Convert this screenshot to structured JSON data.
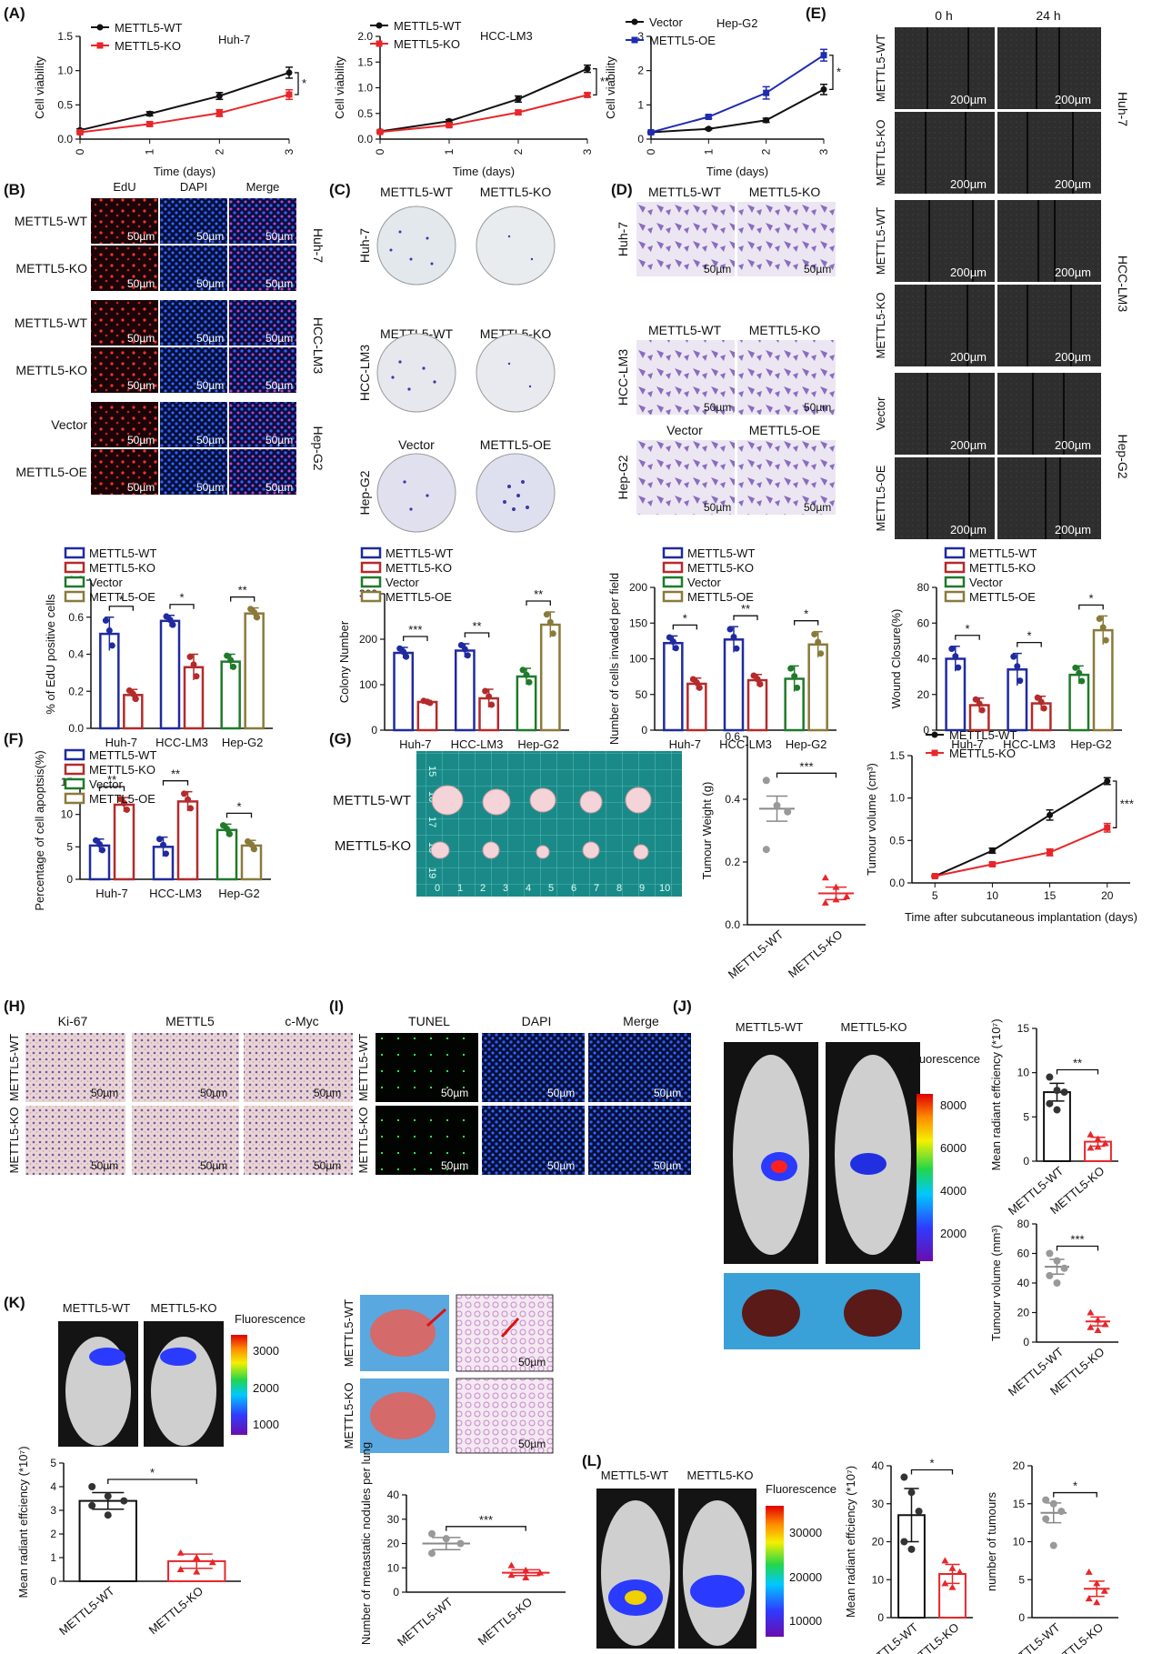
{
  "figure": {
    "panel_labels": [
      "(A)",
      "(B)",
      "(C)",
      "(D)",
      "(E)",
      "(F)",
      "(G)",
      "(H)",
      "(I)",
      "(J)",
      "(K)",
      "(L)"
    ],
    "colors": {
      "wt": "#111111",
      "ko": "#e8262a",
      "oe": "#1f2bb0",
      "vec": "#111111",
      "bar_wt": "#1f2aa0",
      "bar_ko": "#b52a2a",
      "bar_vec": "#1f7a2a",
      "bar_oe": "#8a7a3a",
      "tissue": "#f2dde0",
      "microscopy": "#101838"
    }
  },
  "scale_200": "200µm",
  "scale_50": "50µm",
  "B": {
    "cols": [
      "EdU",
      "DAPI",
      "Merge"
    ],
    "rows": [
      "METTL5-WT",
      "METTL5-KO",
      "METTL5-WT",
      "METTL5-KO",
      "Vector",
      "METTL5-OE"
    ],
    "groups": [
      "Huh-7",
      "HCC-LM3",
      "Hep-G2"
    ]
  },
  "C": {
    "heads": [
      [
        "METTL5-WT",
        "METTL5-KO"
      ],
      [
        "METTL5-WT",
        "METTL5-KO"
      ],
      [
        "Vector",
        "METTL5-OE"
      ]
    ],
    "rows": [
      "Huh-7",
      "HCC-LM3",
      "Hep-G2"
    ]
  },
  "D": {
    "heads": [
      [
        "METTL5-WT",
        "METTL5-KO"
      ],
      [
        "METTL5-WT",
        "METTL5-KO"
      ],
      [
        "Vector",
        "METTL5-OE"
      ]
    ],
    "rows": [
      "Huh-7",
      "HCC-LM3",
      "Hep-G2"
    ]
  },
  "E": {
    "cols": [
      "0 h",
      "24 h"
    ],
    "rows": [
      "METTL5-WT",
      "METTL5-KO",
      "METTL5-WT",
      "METTL5-KO",
      "Vector",
      "METTL5-OE"
    ],
    "groups": [
      "Huh-7",
      "HCC-LM3",
      "Hep-G2"
    ]
  },
  "G": {
    "rows": [
      "METTL5-WT",
      "METTL5-KO"
    ],
    "ruler": [
      "15",
      "16",
      "17",
      "18",
      "19",
      "0",
      "1",
      "2",
      "3",
      "4",
      "5",
      "6",
      "7",
      "8",
      "9",
      "10"
    ]
  },
  "H": {
    "cols": [
      "Ki-67",
      "METTL5",
      "c-Myc"
    ],
    "rows": [
      "METTL5-WT",
      "METTL5-KO"
    ]
  },
  "I": {
    "cols": [
      "TUNEL",
      "DAPI",
      "Merge"
    ],
    "rows": [
      "METTL5-WT",
      "METTL5-KO"
    ]
  },
  "J": {
    "mice": [
      "METTL5-WT",
      "METTL5-KO"
    ],
    "scale_title": "Fluorescence",
    "scale_ticks": [
      "8000",
      "6000",
      "4000",
      "2000"
    ]
  },
  "K": {
    "mice": [
      "METTL5-WT",
      "METTL5-KO"
    ],
    "scale_title": "Fluorescence",
    "scale_ticks": [
      "3000",
      "2000",
      "1000"
    ],
    "lung_rows": [
      "METTL5-WT",
      "METTL5-KO"
    ]
  },
  "L": {
    "mice": [
      "METTL5-WT",
      "METTL5-KO"
    ],
    "scale_title": "Fluorescence",
    "scale_ticks": [
      "30000",
      "20000",
      "10000"
    ]
  },
  "chart_data": [
    {
      "id": "A1",
      "type": "line",
      "title": "Huh-7",
      "xlabel": "Time (days)",
      "ylabel": "Cell viability",
      "x": [
        0,
        1,
        2,
        3
      ],
      "xlim": [
        0,
        3
      ],
      "ylim": [
        0,
        1.5
      ],
      "yticks": [
        0.0,
        0.5,
        1.0,
        1.5
      ],
      "series": [
        {
          "name": "METTL5-WT",
          "values": [
            0.13,
            0.37,
            0.63,
            0.97
          ],
          "err": [
            0.02,
            0.03,
            0.05,
            0.08
          ]
        },
        {
          "name": "METTL5-KO",
          "values": [
            0.1,
            0.22,
            0.38,
            0.65
          ],
          "err": [
            0.02,
            0.03,
            0.05,
            0.07
          ]
        }
      ],
      "sig": "*"
    },
    {
      "id": "A2",
      "type": "line",
      "title": "HCC-LM3",
      "xlabel": "Time (days)",
      "ylabel": "Cell viability",
      "x": [
        0,
        1,
        2,
        3
      ],
      "xlim": [
        0,
        3
      ],
      "ylim": [
        0,
        2.0
      ],
      "yticks": [
        0.0,
        0.5,
        1.0,
        1.5,
        2.0
      ],
      "series": [
        {
          "name": "METTL5-WT",
          "values": [
            0.15,
            0.35,
            0.78,
            1.37
          ],
          "err": [
            0.02,
            0.03,
            0.06,
            0.07
          ]
        },
        {
          "name": "METTL5-KO",
          "values": [
            0.14,
            0.27,
            0.52,
            0.86
          ],
          "err": [
            0.02,
            0.03,
            0.04,
            0.04
          ]
        }
      ],
      "sig": "**"
    },
    {
      "id": "A3",
      "type": "line",
      "title": "Hep-G2",
      "xlabel": "Time (days)",
      "ylabel": "Cell viability",
      "x": [
        0,
        1,
        2,
        3
      ],
      "xlim": [
        0,
        3
      ],
      "ylim": [
        0,
        3
      ],
      "yticks": [
        0,
        1,
        2,
        3
      ],
      "series": [
        {
          "name": "Vector",
          "values": [
            0.2,
            0.3,
            0.55,
            1.45
          ],
          "err": [
            0.02,
            0.03,
            0.06,
            0.15
          ]
        },
        {
          "name": "METTL5-OE",
          "values": [
            0.2,
            0.65,
            1.35,
            2.45
          ],
          "err": [
            0.03,
            0.05,
            0.18,
            0.17
          ]
        }
      ],
      "sig": "*"
    },
    {
      "id": "B",
      "type": "bar",
      "ylabel": "% of EdU positive cells",
      "categories": [
        "Huh-7",
        "HCC-LM3",
        "Hep-G2"
      ],
      "ylim": [
        0,
        0.8
      ],
      "yticks": [
        0.0,
        0.2,
        0.4,
        0.6,
        0.8
      ],
      "legend": [
        "METTL5-WT",
        "METTL5-KO",
        "Vector",
        "METTL5-OE"
      ],
      "bars": [
        {
          "g": 0,
          "s": "METTL5-WT",
          "v": 0.51,
          "e": 0.09
        },
        {
          "g": 0,
          "s": "METTL5-KO",
          "v": 0.18,
          "e": 0.03
        },
        {
          "g": 1,
          "s": "METTL5-WT",
          "v": 0.58,
          "e": 0.03
        },
        {
          "g": 1,
          "s": "METTL5-KO",
          "v": 0.33,
          "e": 0.07
        },
        {
          "g": 2,
          "s": "Vector",
          "v": 0.36,
          "e": 0.04
        },
        {
          "g": 2,
          "s": "METTL5-OE",
          "v": 0.62,
          "e": 0.03
        }
      ],
      "sig": [
        [
          "*",
          "*",
          "**"
        ]
      ]
    },
    {
      "id": "C",
      "type": "bar",
      "ylabel": "Colony Number",
      "categories": [
        "Huh-7",
        "HCC-LM3",
        "Hep-G2"
      ],
      "ylim": [
        0,
        300
      ],
      "yticks": [
        0,
        100,
        200,
        300
      ],
      "legend": [
        "METTL5-WT",
        "METTL5-KO",
        "Vector",
        "METTL5-OE"
      ],
      "bars": [
        {
          "g": 0,
          "s": "METTL5-WT",
          "v": 170,
          "e": 12
        },
        {
          "g": 0,
          "s": "METTL5-KO",
          "v": 62,
          "e": 3
        },
        {
          "g": 1,
          "s": "METTL5-WT",
          "v": 175,
          "e": 15
        },
        {
          "g": 1,
          "s": "METTL5-KO",
          "v": 70,
          "e": 20
        },
        {
          "g": 2,
          "s": "Vector",
          "v": 118,
          "e": 18
        },
        {
          "g": 2,
          "s": "METTL5-OE",
          "v": 232,
          "e": 28
        }
      ],
      "sig": [
        [
          "***",
          "**",
          "**"
        ]
      ]
    },
    {
      "id": "D",
      "type": "bar",
      "ylabel": "Number of cells invaded per field",
      "categories": [
        "Huh-7",
        "HCC-LM3",
        "Hep-G2"
      ],
      "ylim": [
        0,
        200
      ],
      "yticks": [
        0,
        50,
        100,
        150,
        200
      ],
      "legend": [
        "METTL5-WT",
        "METTL5-KO",
        "Vector",
        "METTL5-OE"
      ],
      "bars": [
        {
          "g": 0,
          "s": "METTL5-WT",
          "v": 122,
          "e": 10
        },
        {
          "g": 0,
          "s": "METTL5-KO",
          "v": 65,
          "e": 8
        },
        {
          "g": 1,
          "s": "METTL5-WT",
          "v": 127,
          "e": 18
        },
        {
          "g": 1,
          "s": "METTL5-KO",
          "v": 70,
          "e": 8
        },
        {
          "g": 2,
          "s": "Vector",
          "v": 72,
          "e": 18
        },
        {
          "g": 2,
          "s": "METTL5-OE",
          "v": 120,
          "e": 18
        }
      ],
      "sig": [
        [
          "*",
          "**",
          "*"
        ]
      ]
    },
    {
      "id": "E",
      "type": "bar",
      "ylabel": "Wound Closure(%)",
      "categories": [
        "Huh-7",
        "HCC-LM3",
        "Hep-G2"
      ],
      "ylim": [
        0,
        80
      ],
      "yticks": [
        0,
        20,
        40,
        60,
        80
      ],
      "legend": [
        "METTL5-WT",
        "METTL5-KO",
        "Vector",
        "METTL5-OE"
      ],
      "bars": [
        {
          "g": 0,
          "s": "METTL5-WT",
          "v": 40,
          "e": 7
        },
        {
          "g": 0,
          "s": "METTL5-KO",
          "v": 14,
          "e": 4
        },
        {
          "g": 1,
          "s": "METTL5-WT",
          "v": 34,
          "e": 9
        },
        {
          "g": 1,
          "s": "METTL5-KO",
          "v": 15,
          "e": 4
        },
        {
          "g": 2,
          "s": "Vector",
          "v": 31,
          "e": 5
        },
        {
          "g": 2,
          "s": "METTL5-OE",
          "v": 56,
          "e": 8
        }
      ],
      "sig": [
        [
          "*",
          "*",
          "*"
        ]
      ]
    },
    {
      "id": "F",
      "type": "bar",
      "ylabel": "Percentage of cell apoptsis(%)",
      "categories": [
        "Huh-7",
        "HCC-LM3",
        "Hep-G2"
      ],
      "ylim": [
        0,
        15
      ],
      "yticks": [
        0,
        5,
        10,
        15
      ],
      "legend": [
        "METTL5-WT",
        "METTL5-KO",
        "Vector",
        "METTL5-OE"
      ],
      "bars": [
        {
          "g": 0,
          "s": "METTL5-WT",
          "v": 5.2,
          "e": 1.0
        },
        {
          "g": 0,
          "s": "METTL5-KO",
          "v": 11.5,
          "e": 1.1
        },
        {
          "g": 1,
          "s": "METTL5-WT",
          "v": 5.0,
          "e": 1.5
        },
        {
          "g": 1,
          "s": "METTL5-KO",
          "v": 12.0,
          "e": 1.5
        },
        {
          "g": 2,
          "s": "Vector",
          "v": 7.6,
          "e": 0.9
        },
        {
          "g": 2,
          "s": "METTL5-OE",
          "v": 5.2,
          "e": 0.8
        }
      ],
      "sig": [
        [
          "**",
          "**",
          "*"
        ]
      ]
    },
    {
      "id": "G1",
      "type": "scatter",
      "ylabel": "Tumour Weight (g)",
      "categories": [
        "METTL5-WT",
        "METTL5-KO"
      ],
      "ylim": [
        0,
        0.6
      ],
      "yticks": [
        0.0,
        0.2,
        0.4,
        0.6
      ],
      "groups": [
        {
          "mean": 0.37,
          "sem": 0.04,
          "pts": [
            0.46,
            0.38,
            0.36,
            0.24
          ]
        },
        {
          "mean": 0.1,
          "sem": 0.02,
          "pts": [
            0.15,
            0.12,
            0.09,
            0.07,
            0.08
          ]
        }
      ],
      "sig": "***"
    },
    {
      "id": "G2",
      "type": "line",
      "xlabel": "Time after subcutaneous implantation (days)",
      "ylabel": "Tumour volume (cm³)",
      "x": [
        5,
        10,
        15,
        20
      ],
      "xlim": [
        3,
        22
      ],
      "ylim": [
        0,
        1.5
      ],
      "yticks": [
        0.0,
        0.5,
        1.0,
        1.5
      ],
      "series": [
        {
          "name": "METTL5-WT",
          "values": [
            0.08,
            0.38,
            0.8,
            1.2
          ],
          "err": [
            0.01,
            0.03,
            0.06,
            0.04
          ]
        },
        {
          "name": "METTL5-KO",
          "values": [
            0.08,
            0.22,
            0.36,
            0.65
          ],
          "err": [
            0.01,
            0.02,
            0.04,
            0.05
          ]
        }
      ],
      "sig": "***"
    },
    {
      "id": "J1",
      "type": "scatter",
      "ylabel": "Mean radiant effciency (*10⁷)",
      "categories": [
        "METTL5-WT",
        "METTL5-KO"
      ],
      "ylim": [
        0,
        15
      ],
      "yticks": [
        0,
        5,
        10,
        15
      ],
      "groups": [
        {
          "mean": 7.8,
          "sem": 1.0,
          "pts": [
            9.5,
            8.0,
            7.8,
            6.5,
            5.8
          ]
        },
        {
          "mean": 2.2,
          "sem": 0.5,
          "pts": [
            3.0,
            2.5,
            2.0,
            1.5,
            1.6
          ]
        }
      ],
      "sig": "**"
    },
    {
      "id": "J2",
      "type": "scatter",
      "ylabel": "Tumour volume (mm³)",
      "categories": [
        "METTL5-WT",
        "METTL5-KO"
      ],
      "ylim": [
        0,
        80
      ],
      "yticks": [
        0,
        20,
        40,
        60,
        80
      ],
      "groups": [
        {
          "mean": 51,
          "sem": 5,
          "pts": [
            60,
            55,
            50,
            45,
            40
          ]
        },
        {
          "mean": 14,
          "sem": 3,
          "pts": [
            20,
            15,
            12,
            10,
            8
          ]
        }
      ],
      "sig": "***"
    },
    {
      "id": "K1",
      "type": "bar",
      "ylabel": "Mean radiant effciency (*10⁷)",
      "categories": [
        "METTL5-WT",
        "METTL5-KO"
      ],
      "ylim": [
        0,
        5
      ],
      "yticks": [
        0,
        1,
        2,
        3,
        4,
        5
      ],
      "groups": [
        {
          "mean": 3.4,
          "sem": 0.35,
          "pts": [
            4.0,
            3.6,
            3.4,
            3.2,
            2.8
          ]
        },
        {
          "mean": 0.85,
          "sem": 0.3,
          "pts": [
            1.2,
            1.0,
            0.8,
            0.5,
            0.4
          ]
        }
      ],
      "sig": "*"
    },
    {
      "id": "K2",
      "type": "scatter",
      "ylabel": "Number of metastatic nodules per lung",
      "categories": [
        "METTL5-WT",
        "METTL5-KO"
      ],
      "ylim": [
        0,
        40
      ],
      "yticks": [
        0,
        10,
        20,
        30,
        40
      ],
      "groups": [
        {
          "mean": 20,
          "sem": 2.5,
          "pts": [
            24,
            22,
            20,
            16
          ]
        },
        {
          "mean": 8,
          "sem": 1.2,
          "pts": [
            11,
            9,
            8,
            7,
            6
          ]
        }
      ],
      "sig": "***"
    },
    {
      "id": "L1",
      "type": "bar",
      "ylabel": "Mean radiant effciency (*10⁷)",
      "categories": [
        "METTL5-WT",
        "METTL5-KO"
      ],
      "ylim": [
        0,
        40
      ],
      "yticks": [
        0,
        10,
        20,
        30,
        40
      ],
      "groups": [
        {
          "mean": 27,
          "sem": 7,
          "pts": [
            37,
            33,
            28,
            20,
            18
          ]
        },
        {
          "mean": 11.5,
          "sem": 2.5,
          "pts": [
            15,
            13,
            12,
            9,
            8
          ]
        }
      ],
      "sig": "*"
    },
    {
      "id": "L2",
      "type": "scatter",
      "ylabel": "number of tumours",
      "categories": [
        "METTL5-WT",
        "METTL5-KO"
      ],
      "ylim": [
        0,
        20
      ],
      "yticks": [
        0,
        5,
        10,
        15,
        20
      ],
      "groups": [
        {
          "mean": 13.8,
          "sem": 1.3,
          "pts": [
            15.5,
            15,
            14,
            13,
            9.5
          ]
        },
        {
          "mean": 3.8,
          "sem": 1.0,
          "pts": [
            6,
            4.5,
            3.5,
            2.5,
            2
          ]
        }
      ],
      "sig": "*"
    }
  ]
}
